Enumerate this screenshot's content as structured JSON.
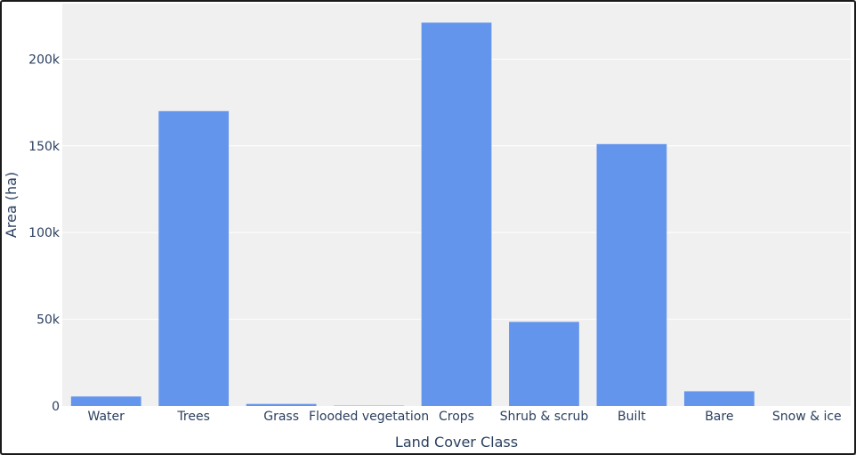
{
  "chart_data": {
    "type": "bar",
    "categories": [
      "Water",
      "Trees",
      "Grass",
      "Flooded vegetation",
      "Crops",
      "Shrub & scrub",
      "Built",
      "Bare",
      "Snow & ice"
    ],
    "values": [
      5500,
      170000,
      1200,
      200,
      221000,
      48500,
      151000,
      8500,
      0
    ],
    "xlabel": "Land Cover Class",
    "ylabel": "Area (ha)",
    "ylim": [
      0,
      232000
    ],
    "yticks": [
      0,
      50000,
      100000,
      150000,
      200000
    ],
    "ytick_labels": [
      "0",
      "50k",
      "100k",
      "150k",
      "200k"
    ],
    "grid": true,
    "bar_color": "#6495ED",
    "plot_background": "#f0f0f0",
    "grid_color": "#ffffff",
    "text_color": "#2a3f5f"
  }
}
